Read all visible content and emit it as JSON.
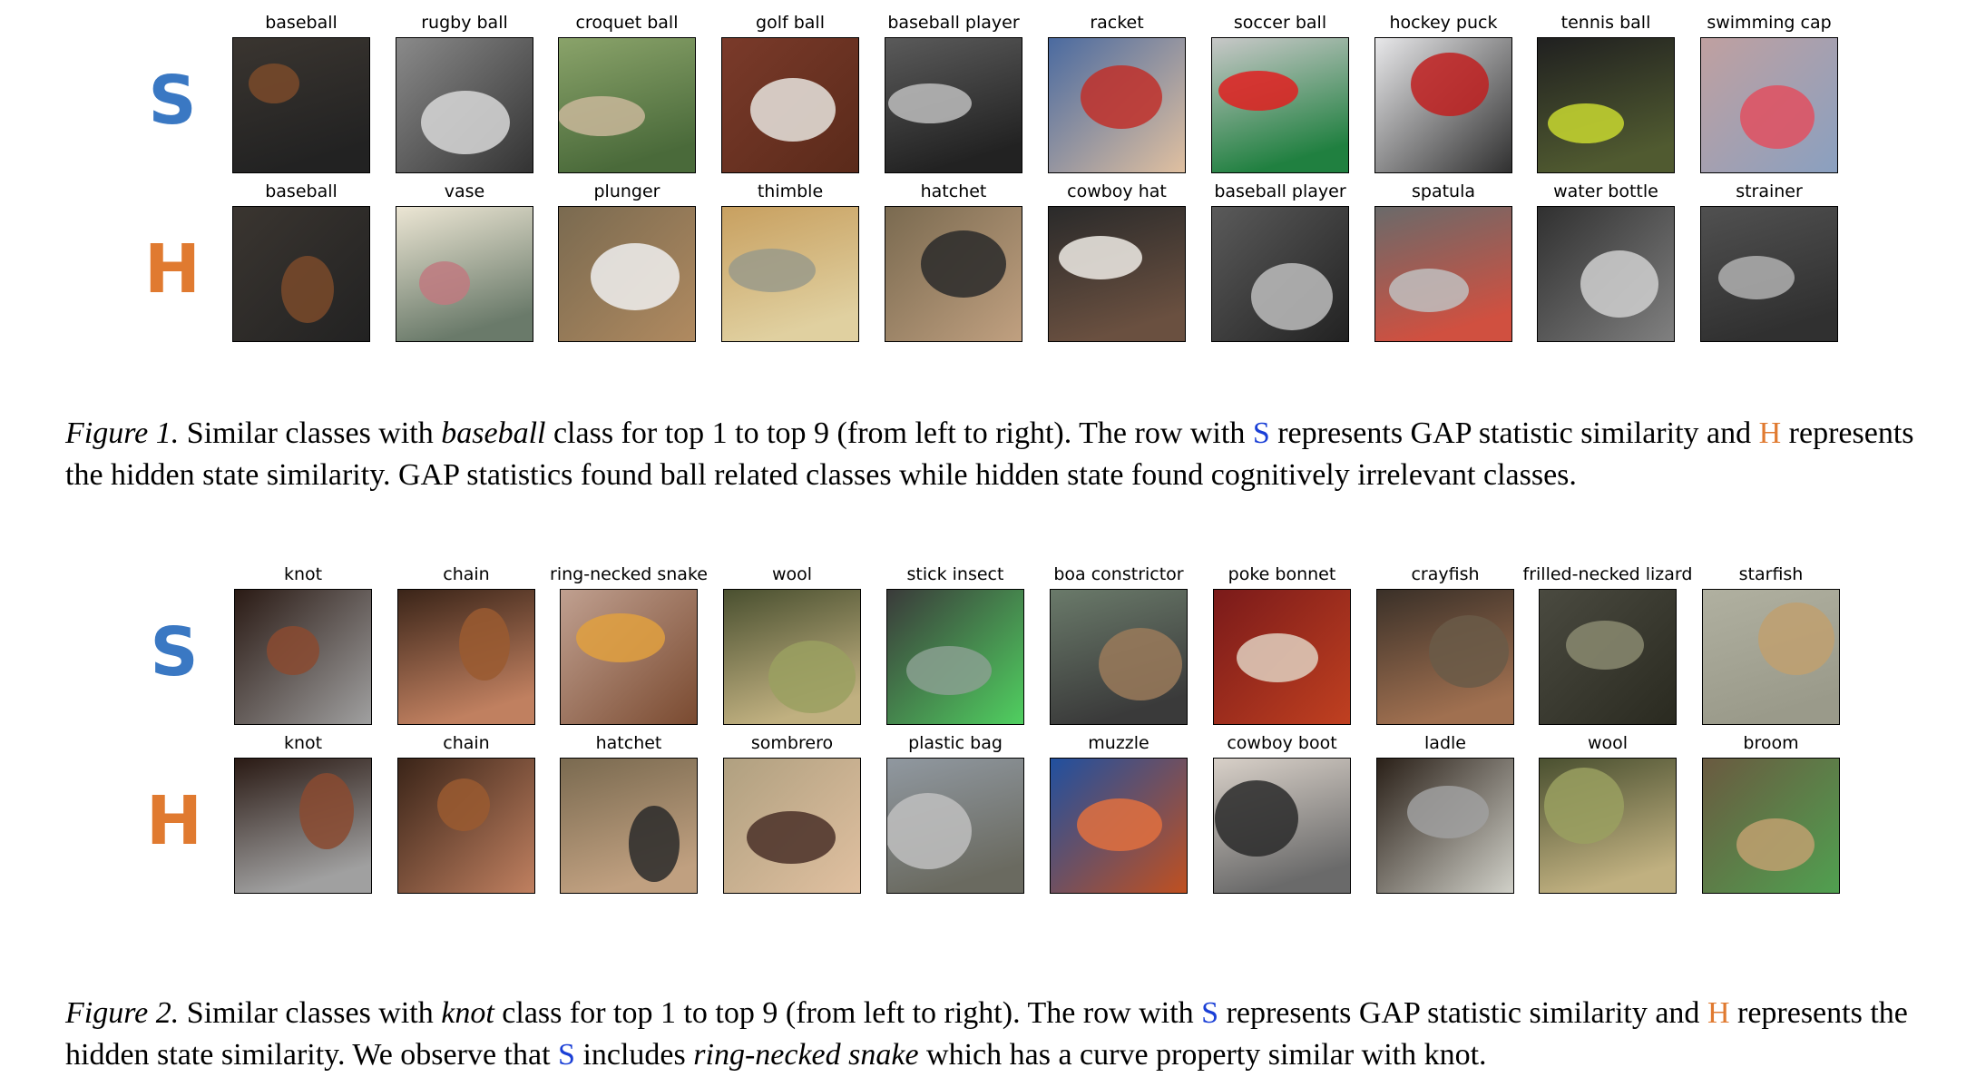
{
  "figures": [
    {
      "rows": [
        {
          "letter": "S",
          "color": "#3a78c3",
          "labels": [
            "baseball",
            "rugby ball",
            "croquet ball",
            "golf ball",
            "baseball player",
            "racket",
            "soccer ball",
            "hockey puck",
            "tennis ball",
            "swimming cap"
          ]
        },
        {
          "letter": "H",
          "color": "#e07a30",
          "labels": [
            "baseball",
            "vase",
            "plunger",
            "thimble",
            "hatchet",
            "cowboy hat",
            "baseball player",
            "spatula",
            "water bottle",
            "strainer"
          ]
        }
      ],
      "caption": {
        "label": "Figure 1.",
        "part1": " Similar classes with ",
        "em1": "baseball",
        "part2": " class for top 1 to top 9 (from left to right). The row with ",
        "s": "S",
        "part3": " represents GAP statistic similarity and ",
        "h": "H",
        "part4": " represents the hidden state similarity. GAP statistics found ball related classes while hidden state found cognitively irrelevant classes."
      }
    },
    {
      "rows": [
        {
          "letter": "S",
          "color": "#3a78c3",
          "labels": [
            "knot",
            "chain",
            "ring-necked snake",
            "wool",
            "stick insect",
            "boa constrictor",
            "poke bonnet",
            "crayfish",
            "frilled-necked lizard",
            "starfish"
          ]
        },
        {
          "letter": "H",
          "color": "#e07a30",
          "labels": [
            "knot",
            "chain",
            "hatchet",
            "sombrero",
            "plastic bag",
            "muzzle",
            "cowboy boot",
            "ladle",
            "wool",
            "broom"
          ]
        }
      ],
      "caption": {
        "label": "Figure 2.",
        "part1": " Similar classes with ",
        "em1": "knot",
        "part2": " class for top 1 to top 9 (from left to right). The row with ",
        "s": "S",
        "part3": " represents GAP statistic similarity and ",
        "h": "H",
        "part4": " represents the hidden state similarity. We observe that ",
        "s2": "S",
        "part5": " includes ",
        "em2": "ring-necked snake",
        "part6": " which has a curve property similar with knot."
      }
    }
  ],
  "caption_colors": {
    "s": "#1a3fd6",
    "h": "#e07a30"
  },
  "thumbs": [
    [
      [
        "#3a3530",
        "#7a4a2a",
        "#222"
      ],
      [
        "#8a8a8a",
        "#d8d8d8",
        "#333"
      ],
      [
        "#8aa36a",
        "#c9b79a",
        "#4a6a3a"
      ],
      [
        "#7a3a2a",
        "#e8e4de",
        "#5a2a1a"
      ],
      [
        "#5a5a5a",
        "#bdbdbd",
        "#222"
      ],
      [
        "#4a6aa0",
        "#c0302a",
        "#e0c0a0"
      ],
      [
        "#c8c8c8",
        "#e02020",
        "#208040"
      ],
      [
        "#e8e8ea",
        "#c02020",
        "#303030"
      ],
      [
        "#202020",
        "#c8d830",
        "#505a30"
      ],
      [
        "#c0a0a0",
        "#e05060",
        "#8aa0c0"
      ]
    ],
    [
      [
        "#3a3530",
        "#7a4a2a",
        "#222"
      ],
      [
        "#ece6d4",
        "#c07a80",
        "#6a7a6a"
      ],
      [
        "#7a6a50",
        "#f0f0f0",
        "#b08a60"
      ],
      [
        "#c8a060",
        "#9a9a8a",
        "#e0d0a0"
      ],
      [
        "#7a6a50",
        "#2a2a2a",
        "#c0a080"
      ],
      [
        "#2a2a2a",
        "#f0ece6",
        "#6a5040"
      ],
      [
        "#5a5a5a",
        "#bdbdbd",
        "#222"
      ],
      [
        "#6a6a6a",
        "#c0c0c0",
        "#d05040"
      ],
      [
        "#303030",
        "#d0d0d0",
        "#808080"
      ],
      [
        "#505050",
        "#b0b0b0",
        "#303030"
      ]
    ],
    [
      [
        "#2a1a14",
        "#8a4a30",
        "#a0a0a0"
      ],
      [
        "#3a2418",
        "#9a5a30",
        "#c08060"
      ],
      [
        "#c0a090",
        "#e0a040",
        "#7a4a30"
      ],
      [
        "#4a5030",
        "#9aa060",
        "#c0b080"
      ],
      [
        "#3a3a3a",
        "#8aa090",
        "#50d060"
      ],
      [
        "#6a7a6a",
        "#9a7a5a",
        "#3a3a3a"
      ],
      [
        "#7a1a1a",
        "#e0d0c0",
        "#c04020"
      ],
      [
        "#3a3028",
        "#6a5a48",
        "#a07050"
      ],
      [
        "#4a4a40",
        "#8a8a70",
        "#2a2a20"
      ],
      [
        "#b0b0a0",
        "#c0a070",
        "#9a9a8a"
      ]
    ],
    [
      [
        "#2a1a14",
        "#8a4a30",
        "#a0a0a0"
      ],
      [
        "#3a2418",
        "#9a5a30",
        "#c08060"
      ],
      [
        "#7a6a50",
        "#2a2a2a",
        "#c0a080"
      ],
      [
        "#b0a080",
        "#4a3028",
        "#e0c0a0"
      ],
      [
        "#9098a0",
        "#c0c0c0",
        "#6a6a60"
      ],
      [
        "#2050a0",
        "#e07040",
        "#c05020"
      ],
      [
        "#d8d0c8",
        "#2a2a2a",
        "#6a6a6a"
      ],
      [
        "#2a2018",
        "#a0a0a0",
        "#d0d0c8"
      ],
      [
        "#4a5030",
        "#9aa060",
        "#c0b080"
      ],
      [
        "#6a5a40",
        "#c0a070",
        "#50a050"
      ]
    ]
  ]
}
